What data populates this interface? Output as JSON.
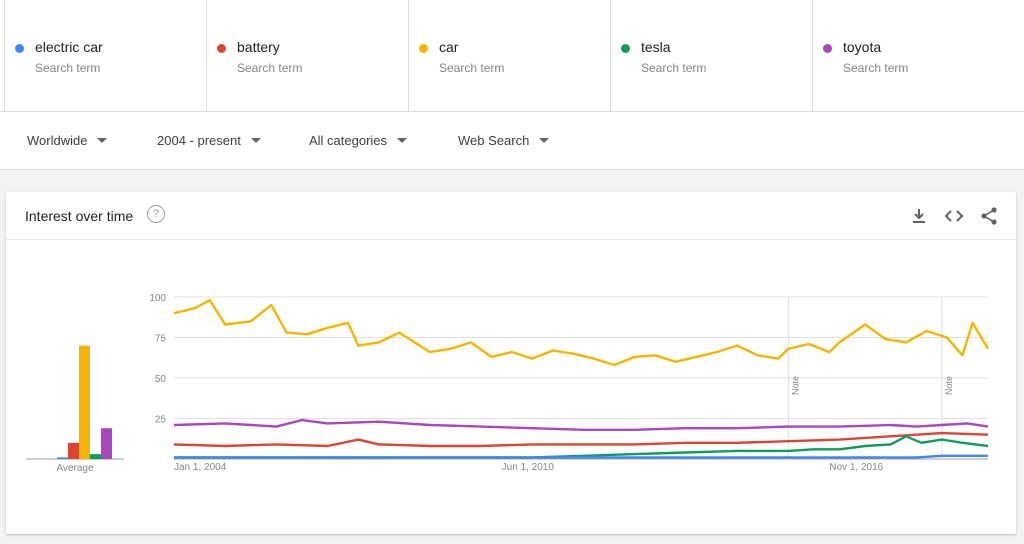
{
  "terms": [
    {
      "name": "electric car",
      "sub": "Search term",
      "color": "#4285f4"
    },
    {
      "name": "battery",
      "sub": "Search term",
      "color": "#db4437"
    },
    {
      "name": "car",
      "sub": "Search term",
      "color": "#f4b400"
    },
    {
      "name": "tesla",
      "sub": "Search term",
      "color": "#0f9d58"
    },
    {
      "name": "toyota",
      "sub": "Search term",
      "color": "#ab47bc"
    }
  ],
  "filters": {
    "region": "Worldwide",
    "time": "2004 - present",
    "category": "All categories",
    "search_type": "Web Search"
  },
  "card": {
    "title": "Interest over time",
    "help_icon": "help-circle-icon",
    "icons": [
      "download-icon",
      "embed-code-icon",
      "share-icon"
    ]
  },
  "chart_data": {
    "type": "line",
    "title": "Interest over time",
    "ylim": [
      0,
      100
    ],
    "yticks": [
      "100",
      "75",
      "50",
      "25"
    ],
    "xticks": [
      "Jan 1, 2004",
      "Jun 1, 2010",
      "Nov 1, 2016"
    ],
    "x_start": 2004.0,
    "x_end": 2019.9,
    "notes": [
      {
        "x": 2016.0,
        "label": "Note"
      },
      {
        "x": 2019.0,
        "label": "Note"
      }
    ],
    "average": {
      "label": "Average",
      "values": [
        1,
        10,
        70,
        3,
        19
      ]
    },
    "series": [
      {
        "name": "electric car",
        "color": "#4285f4",
        "points": [
          [
            2004,
            1
          ],
          [
            2008,
            1
          ],
          [
            2012,
            1
          ],
          [
            2016,
            1
          ],
          [
            2018.5,
            1
          ],
          [
            2019.0,
            2
          ],
          [
            2019.9,
            2
          ]
        ]
      },
      {
        "name": "battery",
        "color": "#db4437",
        "points": [
          [
            2004,
            9
          ],
          [
            2005,
            8
          ],
          [
            2006,
            9
          ],
          [
            2007,
            8
          ],
          [
            2007.6,
            12
          ],
          [
            2008,
            9
          ],
          [
            2009,
            8
          ],
          [
            2010,
            8
          ],
          [
            2011,
            9
          ],
          [
            2012,
            9
          ],
          [
            2013,
            9
          ],
          [
            2014,
            10
          ],
          [
            2015,
            10
          ],
          [
            2016,
            11
          ],
          [
            2017,
            12
          ],
          [
            2017.5,
            13
          ],
          [
            2018,
            14
          ],
          [
            2018.5,
            15
          ],
          [
            2019,
            16
          ],
          [
            2019.9,
            15
          ]
        ]
      },
      {
        "name": "car",
        "color": "#f4b400",
        "points": [
          [
            2004,
            90
          ],
          [
            2004.4,
            93
          ],
          [
            2004.7,
            98
          ],
          [
            2005,
            83
          ],
          [
            2005.5,
            85
          ],
          [
            2005.9,
            95
          ],
          [
            2006.2,
            78
          ],
          [
            2006.6,
            77
          ],
          [
            2007,
            81
          ],
          [
            2007.4,
            84
          ],
          [
            2007.6,
            70
          ],
          [
            2008,
            72
          ],
          [
            2008.4,
            78
          ],
          [
            2008.8,
            70
          ],
          [
            2009,
            66
          ],
          [
            2009.4,
            68
          ],
          [
            2009.8,
            72
          ],
          [
            2010.2,
            63
          ],
          [
            2010.6,
            66
          ],
          [
            2011,
            62
          ],
          [
            2011.4,
            67
          ],
          [
            2011.8,
            65
          ],
          [
            2012.2,
            62
          ],
          [
            2012.6,
            58
          ],
          [
            2013,
            63
          ],
          [
            2013.4,
            64
          ],
          [
            2013.8,
            60
          ],
          [
            2014.2,
            63
          ],
          [
            2014.6,
            66
          ],
          [
            2015,
            70
          ],
          [
            2015.4,
            64
          ],
          [
            2015.8,
            62
          ],
          [
            2016,
            68
          ],
          [
            2016.4,
            71
          ],
          [
            2016.8,
            66
          ],
          [
            2017,
            72
          ],
          [
            2017.5,
            83
          ],
          [
            2017.9,
            74
          ],
          [
            2018.3,
            72
          ],
          [
            2018.7,
            79
          ],
          [
            2019.1,
            75
          ],
          [
            2019.4,
            64
          ],
          [
            2019.6,
            84
          ],
          [
            2019.9,
            68
          ]
        ]
      },
      {
        "name": "tesla",
        "color": "#0f9d58",
        "points": [
          [
            2004,
            1
          ],
          [
            2009,
            1
          ],
          [
            2011,
            1
          ],
          [
            2012,
            2
          ],
          [
            2013,
            3
          ],
          [
            2014,
            4
          ],
          [
            2015,
            5
          ],
          [
            2016,
            5
          ],
          [
            2016.5,
            6
          ],
          [
            2017,
            6
          ],
          [
            2017.5,
            8
          ],
          [
            2018,
            9
          ],
          [
            2018.3,
            14
          ],
          [
            2018.6,
            10
          ],
          [
            2019,
            12
          ],
          [
            2019.4,
            10
          ],
          [
            2019.9,
            8
          ]
        ]
      },
      {
        "name": "toyota",
        "color": "#ab47bc",
        "points": [
          [
            2004,
            21
          ],
          [
            2005,
            22
          ],
          [
            2006,
            20
          ],
          [
            2006.5,
            24
          ],
          [
            2007,
            22
          ],
          [
            2008,
            23
          ],
          [
            2009,
            21
          ],
          [
            2010,
            20
          ],
          [
            2011,
            19
          ],
          [
            2012,
            18
          ],
          [
            2013,
            18
          ],
          [
            2014,
            19
          ],
          [
            2015,
            19
          ],
          [
            2016,
            20
          ],
          [
            2017,
            20
          ],
          [
            2018,
            21
          ],
          [
            2018.5,
            20
          ],
          [
            2019,
            21
          ],
          [
            2019.5,
            22
          ],
          [
            2019.9,
            20
          ]
        ]
      }
    ]
  }
}
